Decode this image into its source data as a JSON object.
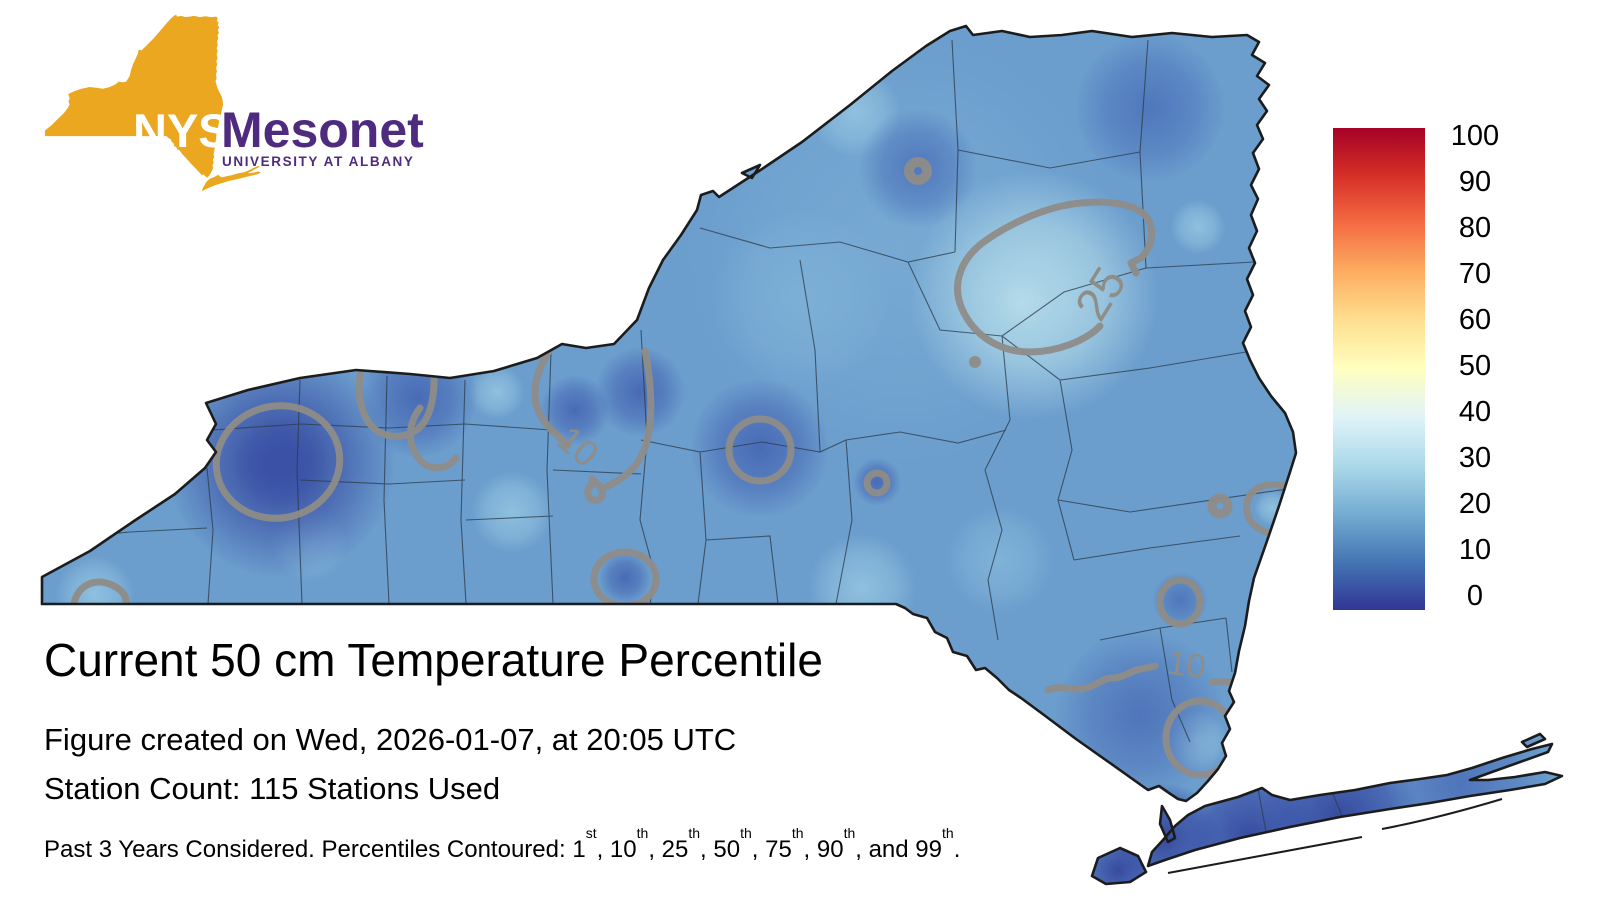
{
  "logo": {
    "nys_text": "NYS",
    "mesonet_text": "Mesonet",
    "tagline": "UNIVERSITY AT ALBANY",
    "state_color": "#eaa71f",
    "text_color": "#4f2b80"
  },
  "heading": {
    "title": "Current 50 cm Temperature Percentile",
    "created": "Figure created on Wed, 2026-01-07, at 20:05 UTC",
    "stations": "Station Count: 115 Stations Used"
  },
  "footnote": {
    "parts": [
      {
        "text": "Past 3 Years Considered. Percentiles Contoured: "
      },
      {
        "num": "1",
        "sup": "st"
      },
      {
        "text": ", "
      },
      {
        "num": "10",
        "sup": "th"
      },
      {
        "text": ", "
      },
      {
        "num": "25",
        "sup": "th"
      },
      {
        "text": ", "
      },
      {
        "num": "50",
        "sup": "th"
      },
      {
        "text": ", "
      },
      {
        "num": "75",
        "sup": "th"
      },
      {
        "text": ", "
      },
      {
        "num": "90",
        "sup": "th"
      },
      {
        "text": ", and "
      },
      {
        "num": "99",
        "sup": "th"
      },
      {
        "text": "."
      }
    ]
  },
  "colorbar": {
    "min": 0,
    "max": 100,
    "ticks": [
      "100",
      "90",
      "80",
      "70",
      "60",
      "50",
      "40",
      "30",
      "20",
      "10",
      "0"
    ],
    "gradient_stops_top_to_bottom": [
      "#a50026",
      "#d73027",
      "#f46d43",
      "#fdae61",
      "#fee090",
      "#ffffbf",
      "#e0f3f8",
      "#abd9e9",
      "#74add1",
      "#4575b4",
      "#313695"
    ]
  },
  "map": {
    "region": "New York State",
    "variable": "50 cm Temperature Percentile",
    "contour_color": "#8f8d88",
    "outline_color": "#1c1c1c",
    "percentiles_contoured": [
      1,
      10,
      25,
      50,
      75,
      90,
      99
    ],
    "contour_labels": [
      {
        "text": "25"
      },
      {
        "text": "10"
      },
      {
        "text": "10"
      }
    ]
  }
}
